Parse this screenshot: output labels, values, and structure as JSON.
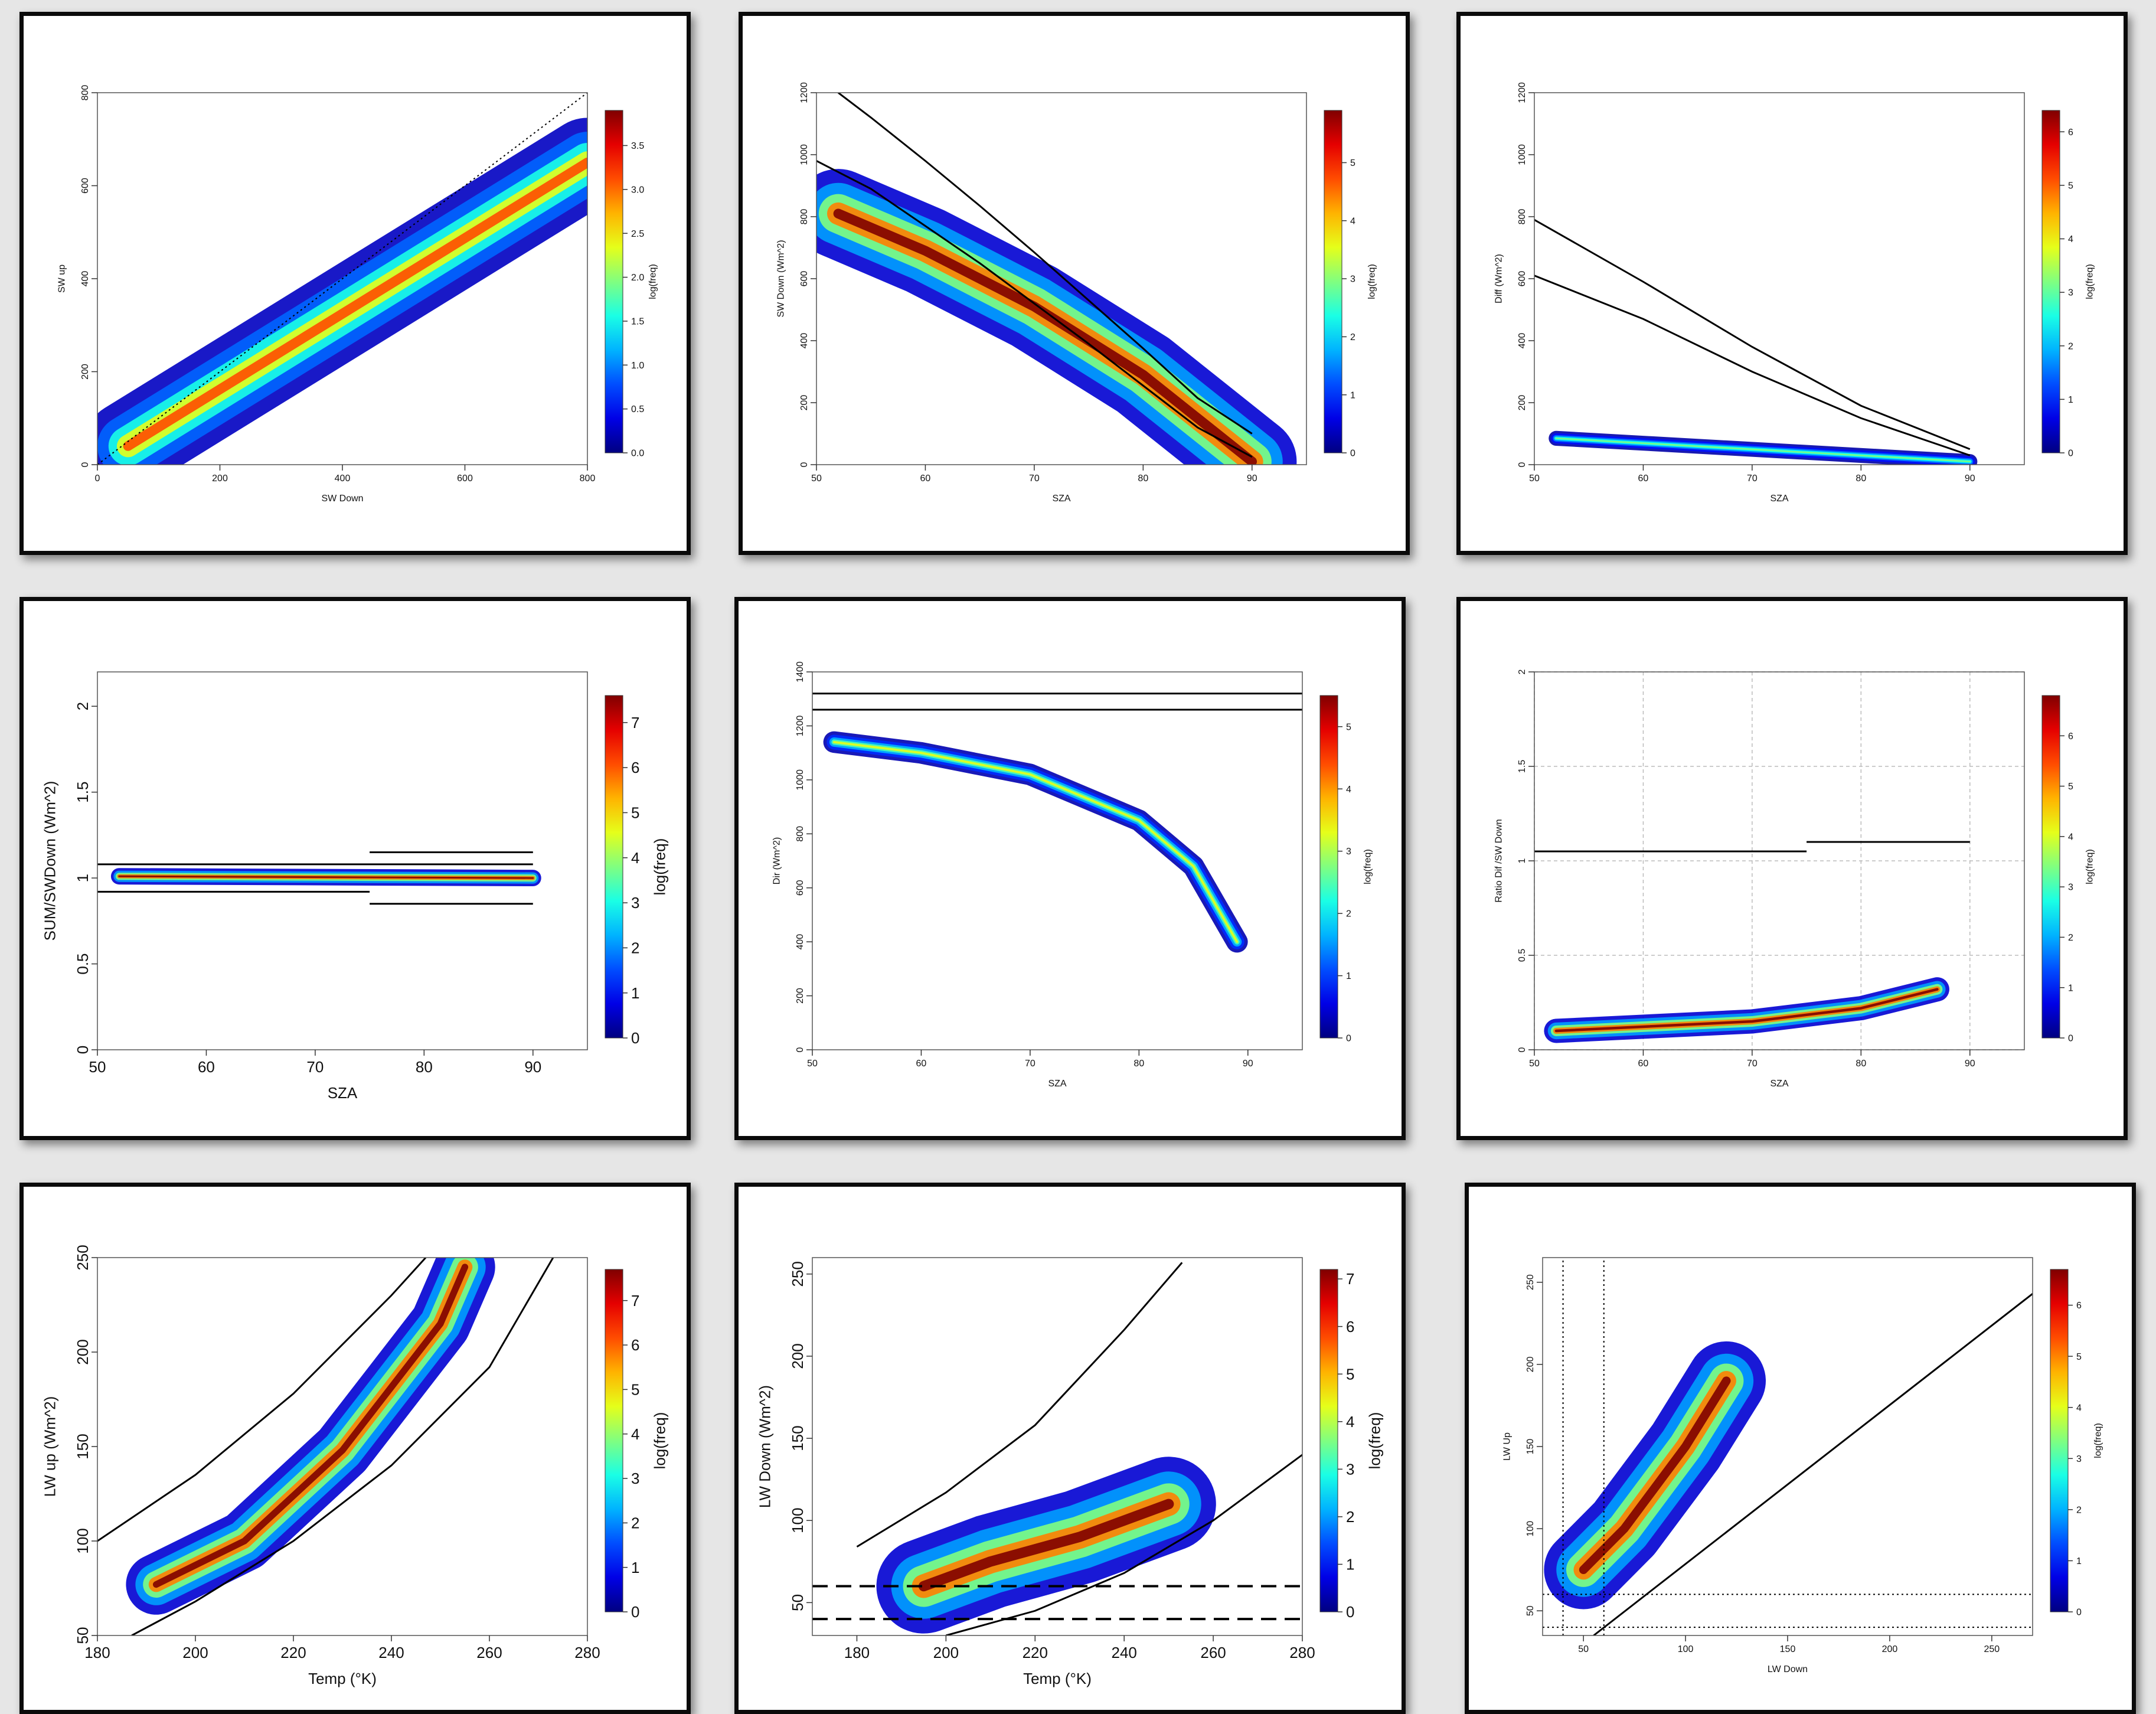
{
  "chart_data": [
    {
      "id": "p1",
      "type": "heatmap",
      "title": "",
      "xlabel": "SW Down",
      "ylabel": "SW up",
      "xlim": [
        0,
        800
      ],
      "ylim": [
        0,
        800
      ],
      "xticks": [
        0,
        200,
        400,
        600,
        800
      ],
      "yticks": [
        0,
        200,
        400,
        600,
        800
      ],
      "colorbar": {
        "label": "log(freq)",
        "min": 0,
        "max": 3.9,
        "ticks": [
          0.0,
          0.5,
          1.0,
          1.5,
          2.0,
          2.5,
          3.0,
          3.5
        ]
      },
      "lines": [
        {
          "style": "dotted",
          "x": [
            0,
            800
          ],
          "y": [
            0,
            800
          ]
        }
      ],
      "density": [
        {
          "x": [
            50,
            800
          ],
          "y": [
            40,
            650
          ],
          "width": 60,
          "peak": 0.8
        }
      ]
    },
    {
      "id": "p2",
      "type": "heatmap",
      "title": "",
      "xlabel": "SZA",
      "ylabel": "SW Down (Wm^2)",
      "xlim": [
        50,
        95
      ],
      "ylim": [
        0,
        1200
      ],
      "xticks": [
        50,
        60,
        70,
        80,
        90
      ],
      "yticks": [
        0,
        200,
        400,
        600,
        800,
        1000,
        1200
      ],
      "colorbar": {
        "label": "log(freq)",
        "min": 0,
        "max": 5.9,
        "ticks": [
          0,
          1,
          2,
          3,
          4,
          5
        ]
      },
      "lines": [
        {
          "style": "solid",
          "x": [
            52,
            55,
            60,
            65,
            70,
            75,
            80,
            85,
            90
          ],
          "y": [
            1200,
            1120,
            980,
            835,
            685,
            530,
            375,
            215,
            100
          ]
        },
        {
          "style": "solid",
          "x": [
            50,
            55,
            60,
            65,
            70,
            75,
            80,
            85,
            90
          ],
          "y": [
            980,
            890,
            770,
            650,
            520,
            390,
            255,
            120,
            25
          ]
        }
      ],
      "density": [
        {
          "x": [
            52,
            60,
            70,
            80,
            90
          ],
          "y": [
            810,
            690,
            510,
            290,
            10
          ],
          "width": 90,
          "peak": 1.0
        }
      ]
    },
    {
      "id": "p3",
      "type": "heatmap",
      "title": "",
      "xlabel": "SZA",
      "ylabel": "Diff (Wm^2)",
      "xlim": [
        50,
        95
      ],
      "ylim": [
        0,
        1200
      ],
      "xticks": [
        50,
        60,
        70,
        80,
        90
      ],
      "yticks": [
        0,
        200,
        400,
        600,
        800,
        1000,
        1200
      ],
      "colorbar": {
        "label": "log(freq)",
        "min": 0,
        "max": 6.4,
        "ticks": [
          0,
          1,
          2,
          3,
          4,
          5,
          6
        ]
      },
      "lines": [
        {
          "style": "solid",
          "x": [
            50,
            60,
            70,
            80,
            90
          ],
          "y": [
            790,
            590,
            380,
            190,
            50
          ]
        },
        {
          "style": "solid",
          "x": [
            50,
            60,
            70,
            80,
            90
          ],
          "y": [
            610,
            470,
            300,
            150,
            30
          ]
        }
      ],
      "density": [
        {
          "x": [
            52,
            90
          ],
          "y": [
            85,
            10
          ],
          "width": 15,
          "peak": 0.5
        }
      ]
    },
    {
      "id": "p4",
      "type": "heatmap",
      "title": "",
      "xlabel": "SZA",
      "ylabel": "SUM/SWDown (Wm^2)",
      "xlim": [
        50,
        95
      ],
      "ylim": [
        0,
        2.2
      ],
      "xticks": [
        50,
        60,
        70,
        80,
        90
      ],
      "yticks": [
        0.0,
        0.5,
        1.0,
        1.5,
        2.0
      ],
      "colorbar": {
        "label": "log(freq)",
        "min": 0,
        "max": 7.6,
        "ticks": [
          0,
          1,
          2,
          3,
          4,
          5,
          6,
          7
        ]
      },
      "lines": [
        {
          "style": "solid",
          "x": [
            50,
            90
          ],
          "y": [
            1.08,
            1.08
          ]
        },
        {
          "style": "solid",
          "x": [
            75,
            90
          ],
          "y": [
            1.15,
            1.15
          ]
        },
        {
          "style": "solid",
          "x": [
            50,
            75
          ],
          "y": [
            0.92,
            0.92
          ]
        },
        {
          "style": "solid",
          "x": [
            75,
            90
          ],
          "y": [
            0.85,
            0.85
          ]
        }
      ],
      "density": [
        {
          "x": [
            52,
            90
          ],
          "y": [
            1.01,
            1.0
          ],
          "width": 0.03,
          "peak": 1.0
        }
      ]
    },
    {
      "id": "p5",
      "type": "heatmap",
      "title": "",
      "xlabel": "SZA",
      "ylabel": "Dir (Wm^2)",
      "xlim": [
        50,
        95
      ],
      "ylim": [
        0,
        1400
      ],
      "xticks": [
        50,
        60,
        70,
        80,
        90
      ],
      "yticks": [
        0,
        200,
        400,
        600,
        800,
        1000,
        1200,
        1400
      ],
      "colorbar": {
        "label": "log(freq)",
        "min": 0,
        "max": 5.5,
        "ticks": [
          0,
          1,
          2,
          3,
          4,
          5
        ]
      },
      "lines": [
        {
          "style": "solid",
          "x": [
            50,
            95
          ],
          "y": [
            1320,
            1320
          ]
        },
        {
          "style": "solid",
          "x": [
            50,
            95
          ],
          "y": [
            1260,
            1260
          ]
        }
      ],
      "density": [
        {
          "x": [
            52,
            60,
            70,
            80,
            85,
            89
          ],
          "y": [
            1140,
            1100,
            1020,
            850,
            680,
            400
          ],
          "width": 25,
          "peak": 0.6
        }
      ]
    },
    {
      "id": "p6",
      "type": "heatmap",
      "title": "",
      "xlabel": "SZA",
      "ylabel": "Ratio Dif /SW Down",
      "xlim": [
        50,
        95
      ],
      "ylim": [
        0,
        2.0
      ],
      "xticks": [
        50,
        60,
        70,
        80,
        90
      ],
      "yticks": [
        0.0,
        0.5,
        1.0,
        1.5,
        2.0
      ],
      "grid": true,
      "colorbar": {
        "label": "log(freq)",
        "min": 0,
        "max": 6.8,
        "ticks": [
          0,
          1,
          2,
          3,
          4,
          5,
          6
        ]
      },
      "lines": [
        {
          "style": "solid",
          "x": [
            50,
            75
          ],
          "y": [
            1.05,
            1.05
          ]
        },
        {
          "style": "solid",
          "x": [
            75,
            90
          ],
          "y": [
            1.1,
            1.1
          ]
        }
      ],
      "density": [
        {
          "x": [
            52,
            70,
            80,
            87
          ],
          "y": [
            0.1,
            0.15,
            0.22,
            0.32
          ],
          "width": 0.04,
          "peak": 1.0
        }
      ]
    },
    {
      "id": "p7",
      "type": "heatmap",
      "title": "",
      "xlabel": "Temp (°K)",
      "ylabel": "LW up (Wm^2)",
      "xlim": [
        180,
        280
      ],
      "ylim": [
        50,
        250
      ],
      "xticks": [
        180,
        200,
        220,
        240,
        260,
        280
      ],
      "yticks": [
        50,
        100,
        150,
        200,
        250
      ],
      "colorbar": {
        "label": "log(freq)",
        "min": 0,
        "max": 7.7,
        "ticks": [
          0,
          1,
          2,
          3,
          4,
          5,
          6,
          7
        ]
      },
      "lines": [
        {
          "style": "solid",
          "x": [
            180,
            200,
            220,
            240,
            247
          ],
          "y": [
            100,
            135,
            178,
            230,
            250
          ]
        },
        {
          "style": "solid",
          "x": [
            187,
            200,
            220,
            240,
            260,
            273
          ],
          "y": [
            50,
            68,
            100,
            140,
            192,
            250
          ]
        }
      ],
      "density": [
        {
          "x": [
            192,
            210,
            230,
            250,
            255
          ],
          "y": [
            77,
            100,
            148,
            215,
            245
          ],
          "width": 10,
          "peak": 1.0
        }
      ]
    },
    {
      "id": "p8",
      "type": "heatmap",
      "title": "",
      "xlabel": "Temp (°K)",
      "ylabel": "LW Down (Wm^2)",
      "xlim": [
        170,
        280
      ],
      "ylim": [
        30,
        260
      ],
      "xticks": [
        180,
        200,
        220,
        240,
        260,
        280
      ],
      "yticks": [
        50,
        100,
        150,
        200,
        250
      ],
      "colorbar": {
        "label": "log(freq)",
        "min": 0,
        "max": 7.2,
        "ticks": [
          0,
          1,
          2,
          3,
          4,
          5,
          6,
          7
        ]
      },
      "lines": [
        {
          "style": "solid",
          "x": [
            180,
            200,
            220,
            240,
            253
          ],
          "y": [
            84,
            117,
            158,
            216,
            257
          ]
        },
        {
          "style": "solid",
          "x": [
            200,
            220,
            240,
            260,
            280
          ],
          "y": [
            30,
            45,
            68,
            100,
            140
          ]
        },
        {
          "style": "dashed",
          "x": [
            170,
            280
          ],
          "y": [
            60,
            60
          ]
        },
        {
          "style": "dashed",
          "x": [
            170,
            280
          ],
          "y": [
            40,
            40
          ]
        }
      ],
      "density": [
        {
          "x": [
            195,
            210,
            230,
            250
          ],
          "y": [
            60,
            75,
            90,
            110
          ],
          "width": 18,
          "peak": 1.0
        }
      ]
    },
    {
      "id": "p9",
      "type": "heatmap",
      "title": "",
      "xlabel": "LW Down",
      "ylabel": "LW Up",
      "xlim": [
        30,
        270
      ],
      "ylim": [
        35,
        265
      ],
      "xticks": [
        50,
        100,
        150,
        200,
        250
      ],
      "yticks": [
        50,
        100,
        150,
        200,
        250
      ],
      "colorbar": {
        "label": "log(freq)",
        "min": 0,
        "max": 6.7,
        "ticks": [
          0,
          1,
          2,
          3,
          4,
          5,
          6
        ]
      },
      "lines": [
        {
          "style": "solid",
          "x": [
            55,
            270
          ],
          "y": [
            35,
            243
          ]
        },
        {
          "style": "dotted",
          "x": [
            40,
            40
          ],
          "y": [
            35,
            265
          ]
        },
        {
          "style": "dotted",
          "x": [
            60,
            60
          ],
          "y": [
            35,
            265
          ]
        },
        {
          "style": "dotted",
          "x": [
            30,
            270
          ],
          "y": [
            60,
            60
          ]
        },
        {
          "style": "dotted",
          "x": [
            30,
            270
          ],
          "y": [
            40,
            40
          ]
        }
      ],
      "density": [
        {
          "x": [
            50,
            70,
            100,
            120
          ],
          "y": [
            75,
            100,
            150,
            190
          ],
          "width": 15,
          "peak": 1.0
        }
      ]
    }
  ]
}
